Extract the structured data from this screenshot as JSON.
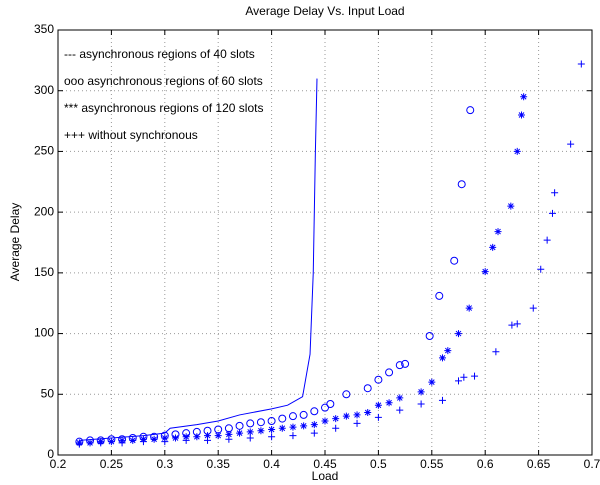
{
  "chart_data": {
    "type": "scatter",
    "title": "Average Delay Vs. Input Load",
    "x_label": "Load",
    "y_label": "Average Delay",
    "xlim": [
      0.2,
      0.7
    ],
    "xticks": [
      0.2,
      0.25,
      0.3,
      0.35,
      0.4,
      0.45,
      0.5,
      0.55,
      0.6,
      0.65,
      0.7
    ],
    "ylim": [
      0,
      350
    ],
    "yticks": [
      0,
      50,
      100,
      150,
      200,
      250,
      300,
      350
    ],
    "grid": true,
    "legend": "upper left",
    "series": [
      {
        "name": "--- asynchronous regions of 40 slots",
        "color": "#0000ff",
        "marker": "line",
        "x": [
          0.22,
          0.25,
          0.28,
          0.3,
          0.305,
          0.33,
          0.35,
          0.37,
          0.4,
          0.415,
          0.429,
          0.436,
          0.439,
          0.441,
          0.4425
        ],
        "values": [
          12,
          14,
          16,
          18,
          22,
          25,
          28,
          33,
          38,
          41,
          48,
          83,
          150,
          250,
          310
        ]
      },
      {
        "name": "ooo asynchronous regions of 60 slots",
        "color": "#0000ff",
        "marker": "o",
        "x": [
          0.22,
          0.23,
          0.24,
          0.25,
          0.26,
          0.27,
          0.28,
          0.29,
          0.3,
          0.31,
          0.32,
          0.33,
          0.34,
          0.35,
          0.36,
          0.37,
          0.38,
          0.39,
          0.4,
          0.41,
          0.42,
          0.43,
          0.44,
          0.45,
          0.455,
          0.47,
          0.49,
          0.5,
          0.51,
          0.52,
          0.525,
          0.548,
          0.557,
          0.571,
          0.578,
          0.586
        ],
        "values": [
          11,
          12,
          12,
          13,
          13,
          14,
          15,
          15,
          16,
          17,
          18,
          19,
          20,
          21,
          22,
          24,
          26,
          27,
          28,
          30,
          32,
          33,
          36,
          39,
          42,
          50,
          55,
          62,
          68,
          74,
          75,
          98,
          131,
          160,
          223,
          284
        ]
      },
      {
        "name": "*** asynchronous regions of 120 slots",
        "color": "#0000ff",
        "marker": "*",
        "x": [
          0.22,
          0.23,
          0.24,
          0.25,
          0.26,
          0.27,
          0.28,
          0.29,
          0.3,
          0.31,
          0.32,
          0.33,
          0.34,
          0.35,
          0.36,
          0.37,
          0.38,
          0.39,
          0.4,
          0.41,
          0.42,
          0.43,
          0.44,
          0.45,
          0.46,
          0.47,
          0.48,
          0.49,
          0.5,
          0.51,
          0.52,
          0.54,
          0.55,
          0.56,
          0.565,
          0.575,
          0.585,
          0.6,
          0.607,
          0.612,
          0.624,
          0.63,
          0.634,
          0.636
        ],
        "values": [
          10,
          10,
          11,
          11,
          12,
          12,
          13,
          13,
          14,
          14,
          15,
          15,
          16,
          16,
          17,
          18,
          19,
          20,
          21,
          22,
          23,
          24,
          25,
          28,
          30,
          32,
          33,
          35,
          41,
          43,
          47,
          52,
          60,
          80,
          86,
          100,
          121,
          151,
          171,
          184,
          205,
          250,
          280,
          295
        ]
      },
      {
        "name": "+++ without synchronous",
        "color": "#0000ff",
        "marker": "+",
        "x": [
          0.22,
          0.24,
          0.26,
          0.28,
          0.3,
          0.32,
          0.34,
          0.36,
          0.38,
          0.4,
          0.42,
          0.44,
          0.46,
          0.48,
          0.5,
          0.52,
          0.54,
          0.56,
          0.575,
          0.58,
          0.59,
          0.61,
          0.625,
          0.63,
          0.645,
          0.652,
          0.658,
          0.663,
          0.665,
          0.68,
          0.69
        ],
        "values": [
          9,
          10,
          10,
          11,
          11,
          12,
          12,
          13,
          14,
          15,
          16,
          18,
          22,
          26,
          31,
          37,
          42,
          45,
          61,
          64,
          65,
          85,
          107,
          108,
          121,
          153,
          177,
          199,
          216,
          256,
          322
        ]
      }
    ]
  }
}
